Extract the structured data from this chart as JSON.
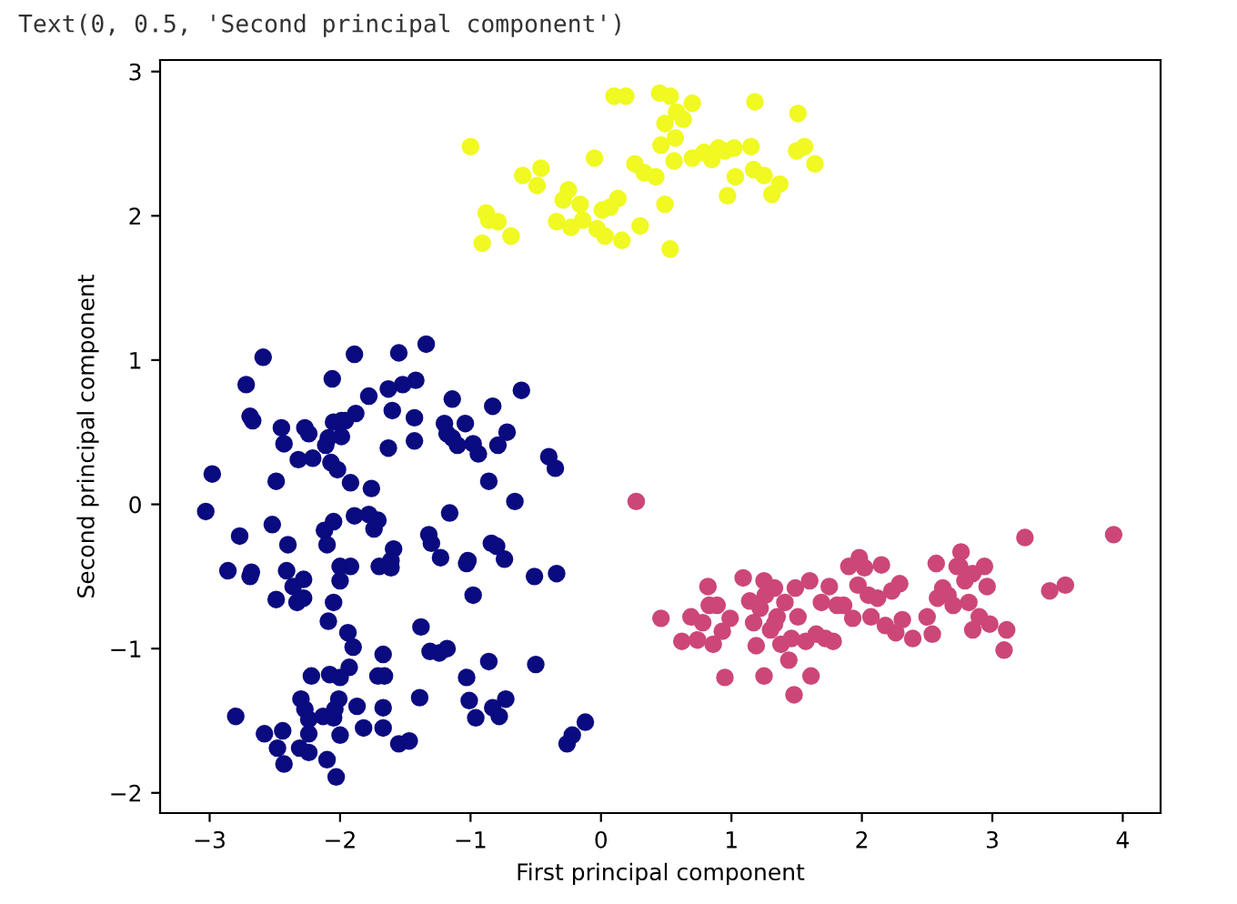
{
  "chart_data": {
    "type": "scatter",
    "xlabel": "First principal component",
    "ylabel": "Second principal component",
    "annotations": [
      "Text(0, 0.5, 'Second principal component')"
    ],
    "xlim": [
      -3.38,
      4.29
    ],
    "ylim": [
      -2.14,
      3.08
    ],
    "xticks": [
      -3,
      -2,
      -1,
      0,
      1,
      2,
      3,
      4
    ],
    "yticks": [
      -2,
      -1,
      0,
      1,
      2,
      3
    ],
    "marker": "circle",
    "grid": false,
    "series": [
      {
        "color": "#0b0b80",
        "x": [
          -3.03,
          -2.98,
          -2.77,
          -2.86,
          -2.69,
          -2.68,
          -2.72,
          -2.59,
          -2.69,
          -2.67,
          -2.8,
          -2.58,
          -2.48,
          -2.43,
          -2.44,
          -2.49,
          -2.52,
          -2.49,
          -2.45,
          -2.43,
          -2.4,
          -2.41,
          -2.36,
          -2.33,
          -2.28,
          -2.28,
          -2.32,
          -2.27,
          -2.24,
          -2.21,
          -2.3,
          -2.27,
          -2.24,
          -2.22,
          -2.31,
          -2.24,
          -2.24,
          -2.13,
          -2.1,
          -2.03,
          -2.0,
          -2.05,
          -2.01,
          -2.0,
          -1.93,
          -1.94,
          -1.9,
          -2.04,
          -1.87,
          -1.82,
          -2.12,
          -2.1,
          -2.09,
          -2.05,
          -2.05,
          -2.0,
          -2.0,
          -1.92,
          -1.89,
          -1.78,
          -1.74,
          -1.71,
          -1.76,
          -1.92,
          -2.02,
          -2.07,
          -2.11,
          -2.09,
          -1.99,
          -2.05,
          -1.99,
          -1.96,
          -1.88,
          -2.06,
          -1.89,
          -1.78,
          -1.6,
          -1.63,
          -1.52,
          -1.42,
          -1.55,
          -1.34,
          -1.43,
          -1.43,
          -1.63,
          -1.59,
          -1.61,
          -1.7,
          -1.61,
          -1.67,
          -1.71,
          -1.66,
          -1.67,
          -1.67,
          -1.55,
          -1.47,
          -1.39,
          -1.38,
          -1.32,
          -1.3,
          -1.23,
          -1.31,
          -1.24,
          -1.18,
          -1.16,
          -1.14,
          -1.2,
          -1.18,
          -1.14,
          -1.1,
          -1.04,
          -1.03,
          -1.02,
          -0.98,
          -0.94,
          -0.98,
          -1.03,
          -1.01,
          -0.96,
          -0.86,
          -0.86,
          -0.84,
          -0.8,
          -0.83,
          -0.79,
          -0.74,
          -0.72,
          -0.83,
          -0.78,
          -0.73,
          -0.66,
          -0.61,
          -0.51,
          -0.5,
          -0.4,
          -0.35,
          -0.34,
          -0.26,
          -0.22,
          -0.12,
          -2.08
        ],
        "values": [
          -0.05,
          0.21,
          -0.22,
          -0.46,
          -0.5,
          -0.47,
          0.83,
          1.02,
          0.61,
          0.58,
          -1.47,
          -1.59,
          -1.69,
          -1.8,
          -1.57,
          -0.66,
          -0.14,
          0.16,
          0.53,
          0.42,
          -0.28,
          -0.46,
          -0.57,
          -0.68,
          -0.65,
          -0.52,
          0.31,
          0.53,
          0.49,
          0.32,
          -1.35,
          -1.42,
          -1.49,
          -1.19,
          -1.69,
          -1.72,
          -1.59,
          -1.47,
          -1.77,
          -1.89,
          -1.6,
          -1.48,
          -1.35,
          -1.2,
          -1.13,
          -0.89,
          -0.99,
          -1.42,
          -1.4,
          -1.55,
          -0.18,
          -0.28,
          -0.81,
          -0.68,
          -0.12,
          -0.43,
          -0.53,
          -0.43,
          -0.08,
          -0.07,
          -0.17,
          -0.11,
          0.11,
          0.15,
          0.24,
          0.29,
          0.41,
          0.46,
          0.47,
          0.57,
          0.58,
          0.58,
          0.63,
          0.87,
          1.04,
          0.75,
          0.65,
          0.8,
          0.83,
          0.86,
          1.05,
          1.11,
          0.6,
          0.44,
          0.39,
          -0.31,
          -0.39,
          -0.43,
          -0.44,
          -1.04,
          -1.19,
          -1.19,
          -1.41,
          -1.55,
          -1.66,
          -1.64,
          -1.34,
          -0.85,
          -0.21,
          -0.27,
          -0.37,
          -1.02,
          -1.03,
          -1.0,
          -0.06,
          0.73,
          0.56,
          0.49,
          0.46,
          0.41,
          0.56,
          -0.41,
          -0.39,
          0.42,
          0.35,
          -0.63,
          -1.2,
          -1.36,
          -1.48,
          -1.09,
          0.16,
          -0.27,
          -0.29,
          0.68,
          0.41,
          -0.38,
          0.5,
          -1.41,
          -1.47,
          -1.35,
          0.02,
          0.79,
          -0.5,
          -1.11,
          0.33,
          0.25,
          -0.48,
          -1.66,
          -1.6,
          -1.51,
          -1.18
        ]
      },
      {
        "color": "#cc4778",
        "x": [
          0.27,
          0.46,
          0.62,
          0.69,
          0.74,
          0.78,
          0.82,
          0.83,
          0.89,
          0.86,
          0.95,
          0.99,
          0.93,
          1.09,
          1.14,
          1.17,
          1.19,
          1.22,
          1.25,
          1.26,
          1.3,
          1.33,
          1.35,
          1.38,
          1.41,
          1.44,
          1.46,
          1.48,
          1.49,
          1.51,
          1.57,
          1.6,
          1.61,
          1.65,
          1.69,
          1.72,
          1.75,
          1.78,
          1.81,
          1.86,
          1.9,
          1.93,
          1.97,
          1.98,
          2.02,
          2.05,
          2.07,
          2.12,
          2.15,
          2.18,
          2.23,
          2.26,
          2.29,
          2.31,
          2.39,
          2.5,
          2.54,
          2.57,
          2.58,
          2.62,
          2.66,
          2.7,
          2.73,
          2.76,
          2.79,
          2.82,
          2.85,
          2.9,
          2.94,
          2.96,
          2.98,
          3.09,
          3.11,
          3.25,
          3.44,
          3.56,
          3.93,
          2.75,
          2.85,
          1.25,
          1.33
        ],
        "values": [
          0.02,
          -0.79,
          -0.95,
          -0.78,
          -0.94,
          -0.82,
          -0.57,
          -0.7,
          -0.7,
          -0.97,
          -1.2,
          -0.79,
          -0.88,
          -0.51,
          -0.67,
          -0.82,
          -0.98,
          -0.72,
          -1.19,
          -0.63,
          -0.87,
          -0.58,
          -0.78,
          -0.97,
          -0.68,
          -1.08,
          -0.93,
          -1.32,
          -0.58,
          -0.78,
          -0.95,
          -0.53,
          -1.19,
          -0.9,
          -0.68,
          -0.93,
          -0.57,
          -0.95,
          -0.7,
          -0.7,
          -0.43,
          -0.79,
          -0.56,
          -0.37,
          -0.44,
          -0.63,
          -0.78,
          -0.65,
          -0.42,
          -0.84,
          -0.6,
          -0.89,
          -0.55,
          -0.8,
          -0.93,
          -0.78,
          -0.9,
          -0.41,
          -0.65,
          -0.58,
          -0.63,
          -0.7,
          -0.43,
          -0.33,
          -0.53,
          -0.68,
          -0.87,
          -0.78,
          -0.43,
          -0.57,
          -0.83,
          -1.01,
          -0.87,
          -0.23,
          -0.6,
          -0.56,
          -0.21,
          -0.43,
          -0.48,
          -0.53,
          -0.83
        ]
      },
      {
        "color": "#f0f921",
        "x": [
          -1.0,
          -0.88,
          -0.86,
          -0.79,
          -0.91,
          -0.69,
          -0.6,
          -0.46,
          -0.49,
          -0.34,
          -0.29,
          -0.25,
          -0.23,
          -0.16,
          -0.14,
          -0.05,
          -0.03,
          0.01,
          0.03,
          0.07,
          0.13,
          0.16,
          0.3,
          0.1,
          0.19,
          0.26,
          0.33,
          0.42,
          0.49,
          0.53,
          0.45,
          0.53,
          0.49,
          0.58,
          0.63,
          0.7,
          0.57,
          0.46,
          0.56,
          0.7,
          0.79,
          0.85,
          0.9,
          0.95,
          1.02,
          0.97,
          1.03,
          1.15,
          1.18,
          1.17,
          1.25,
          1.31,
          1.37,
          1.51,
          1.5,
          1.56,
          1.64
        ],
        "values": [
          2.48,
          2.02,
          1.97,
          1.96,
          1.81,
          1.86,
          2.28,
          2.33,
          2.21,
          1.96,
          2.11,
          2.18,
          1.92,
          2.08,
          1.97,
          2.4,
          1.91,
          2.04,
          1.86,
          2.06,
          2.12,
          1.83,
          1.93,
          2.83,
          2.83,
          2.36,
          2.3,
          2.27,
          2.08,
          1.77,
          2.85,
          2.83,
          2.64,
          2.72,
          2.67,
          2.78,
          2.54,
          2.49,
          2.38,
          2.4,
          2.44,
          2.39,
          2.47,
          2.45,
          2.47,
          2.14,
          2.27,
          2.48,
          2.79,
          2.32,
          2.28,
          2.15,
          2.22,
          2.71,
          2.45,
          2.48,
          2.36
        ]
      }
    ]
  }
}
